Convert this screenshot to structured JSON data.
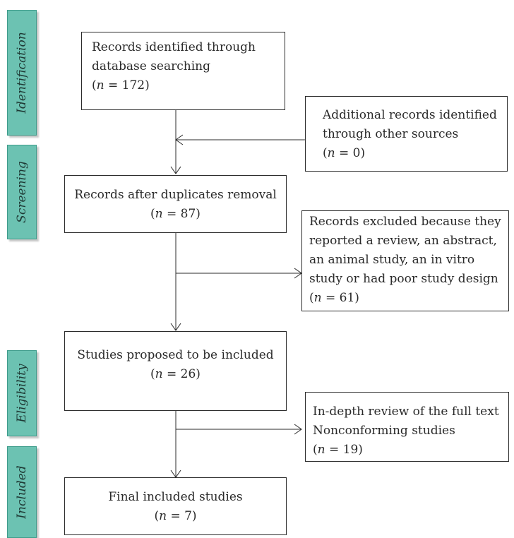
{
  "phases": {
    "identification": "Identification",
    "screening": "Screening",
    "eligibility": "Eligibility",
    "included": "Included"
  },
  "boxes": {
    "identified": {
      "line1": "Records identified through",
      "line2": "database searching",
      "count_prefix": "(",
      "n": "n",
      "count_suffix": " = 172)"
    },
    "additional": {
      "line1": "Additional records identified",
      "line2": "through other sources",
      "count_prefix": "(",
      "n": "n",
      "count_suffix": " = 0)"
    },
    "after_duplicates": {
      "line1": "Records after duplicates removal",
      "count_prefix": "(",
      "n": "n",
      "count_suffix": " = 87)"
    },
    "excluded": {
      "line1": "Records excluded because they",
      "line2": "reported a review, an abstract,",
      "line3": "an animal study, an in vitro",
      "line4": "study or had poor study design",
      "count_prefix": "(",
      "n": "n",
      "count_suffix": " = 61)"
    },
    "proposed": {
      "line1": "Studies proposed to be included",
      "count_prefix": "(",
      "n": "n",
      "count_suffix": " = 26)"
    },
    "nonconforming": {
      "line1": "In-depth review of the full text",
      "line2": "Nonconforming studies",
      "count_prefix": "(",
      "n": "n",
      "count_suffix": " = 19)"
    },
    "final": {
      "line1": "Final included studies",
      "count_prefix": "(",
      "n": "n",
      "count_suffix": " = 7)"
    }
  }
}
